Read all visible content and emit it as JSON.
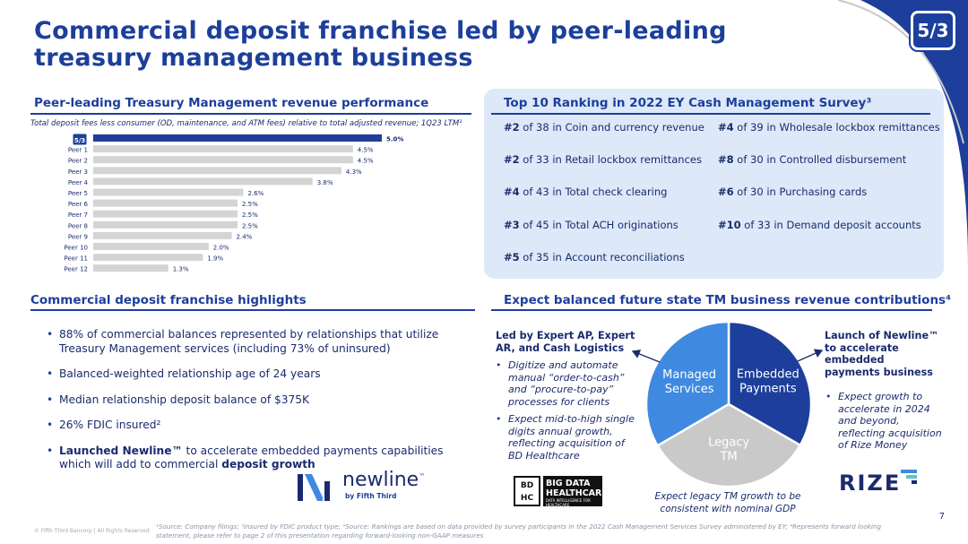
{
  "title": "Commercial deposit franchise led by peer-leading treasury management business",
  "logo_text": "5/3",
  "tm_section": {
    "heading": "Peer-leading Treasury Management revenue performance",
    "note": "Total deposit fees less consumer (OD, maintenance, and ATM fees) relative to total adjusted revenue; 1Q23 LTM¹"
  },
  "chart_data": {
    "type": "bar",
    "orientation": "horizontal",
    "categories": [
      "Fifth Third",
      "Peer 1",
      "Peer 2",
      "Peer 3",
      "Peer 4",
      "Peer 5",
      "Peer 6",
      "Peer 7",
      "Peer 8",
      "Peer 9",
      "Peer 10",
      "Peer 11",
      "Peer 12"
    ],
    "values": [
      5.0,
      4.5,
      4.5,
      4.3,
      3.8,
      2.6,
      2.5,
      2.5,
      2.5,
      2.4,
      2.0,
      1.9,
      1.3
    ],
    "value_labels": [
      "5.0%",
      "4.5%",
      "4.5%",
      "4.3%",
      "3.8%",
      "2.6%",
      "2.5%",
      "2.5%",
      "2.5%",
      "2.4%",
      "2.0%",
      "1.9%",
      "1.3%"
    ],
    "first_category_shown_as_logo": true,
    "highlight_color": "#1d3f9b",
    "bar_color": "#d4d4d4",
    "xlim": [
      0,
      5.0
    ],
    "grid": false
  },
  "ranking": {
    "heading": "Top 10 Ranking in 2022 EY Cash Management Survey³",
    "items": [
      {
        "rank": "#2",
        "text": " of 38 in Coin and currency revenue"
      },
      {
        "rank": "#4",
        "text": " of 39 in Wholesale lockbox remittances"
      },
      {
        "rank": "#2",
        "text": " of 33 in Retail lockbox remittances"
      },
      {
        "rank": "#8",
        "text": " of 30 in Controlled disbursement"
      },
      {
        "rank": "#4",
        "text": " of 43 in Total check clearing"
      },
      {
        "rank": "#6",
        "text": " of 30 in Purchasing cards"
      },
      {
        "rank": "#3",
        "text": " of 45 in Total ACH originations"
      },
      {
        "rank": "#10",
        "text": " of 33 in Demand deposit accounts"
      },
      {
        "rank": "#5",
        "text": " of 35 in Account reconciliations"
      }
    ]
  },
  "highlights": {
    "heading": "Commercial deposit franchise highlights",
    "items": [
      "88% of commercial balances represented by relationships that utilize Treasury Management services (including 73% of uninsured)",
      "Balanced-weighted relationship age of 24 years",
      "Median relationship deposit balance of $375K",
      "26% FDIC insured²"
    ],
    "last_item": {
      "bold1": "Launched Newline™",
      "mid": " to accelerate embedded payments capabilities which will add to commercial ",
      "bold2": "deposit growth"
    }
  },
  "newline_logo": {
    "word": "newline",
    "tm": "™",
    "sub": "by Fifth Third"
  },
  "future_state": {
    "heading": "Expect balanced future state TM business revenue contributions⁴",
    "left_heading": "Led by Expert AP, Expert AR, and Cash Logistics",
    "left_bullets": [
      "Digitize  and automate manual “order-to-cash” and “procure-to-pay” processes for clients",
      "Expect mid-to-high single digits annual growth, reflecting acquisition of BD Healthcare"
    ],
    "right_heading": "Launch of Newline™ to accelerate embedded payments business",
    "right_bullets": [
      "Expect growth to accelerate in 2024 and beyond, reflecting acquisition of Rize Money"
    ],
    "pie_note": "Expect legacy TM growth to be consistent with nominal GDP"
  },
  "pie_data": {
    "type": "pie",
    "slices": [
      {
        "label": [
          "Embedded",
          "Payments"
        ],
        "value": 33.3,
        "color": "#1d3f9b",
        "text_color": "#ffffff"
      },
      {
        "label": [
          "Legacy",
          "TM"
        ],
        "value": 33.3,
        "color": "#c9c9c9",
        "text_color": "#ffffff"
      },
      {
        "label": [
          "Managed",
          "Services"
        ],
        "value": 33.4,
        "color": "#3f8ae0",
        "text_color": "#ffffff"
      }
    ]
  },
  "bdh_logo": {
    "box": "BD HC",
    "line1": "BIG DATA",
    "line2": "HEALTHCARE",
    "tiny": "DATA INTELLIGENCE FOR HEALTHCARE"
  },
  "rize_logo": "RIZE",
  "page_number": "7",
  "footnote": "¹Source: Company filings; ²Insured by FDIC product type; ³Source: Rankings are based on data provided by survey participants in the 2022 Cash Management Services Survey administered by EY; ⁴Represents forward looking statement, please refer to page 2 of this presentation regarding forward-looking non-GAAP measures",
  "copyright": "© Fifth Third Bancorp | All Rights Reserved"
}
